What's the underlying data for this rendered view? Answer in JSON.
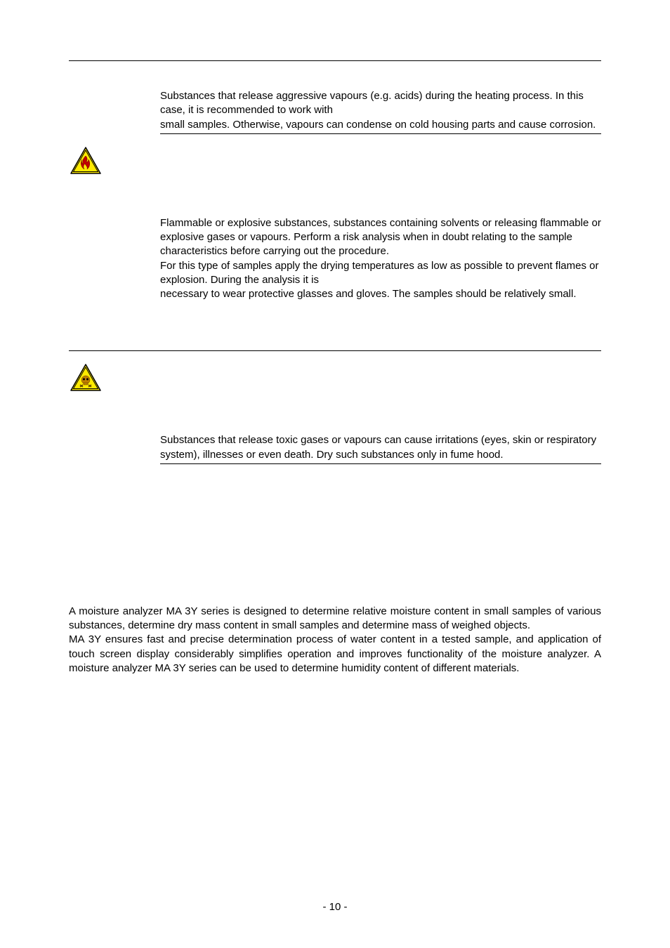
{
  "sections": [
    {
      "text": "Substances that release aggressive vapours (e.g. acids) during the heating process. In this case, it is recommended to work with\nsmall samples. Otherwise, vapours can condense on cold housing parts and cause corrosion."
    },
    {
      "text": "Flammable or explosive substances, substances containing solvents or releasing flammable or explosive gases or vapours. Perform a risk analysis when in doubt relating to the sample characteristics before carrying out the procedure.\nFor this type of samples apply the drying temperatures as low as possible to prevent flames or explosion. During the analysis it is\nnecessary to wear protective glasses and gloves. The samples should be relatively small."
    },
    {
      "text": "Substances that release toxic gases or vapours can cause irritations (eyes, skin or respiratory system), illnesses or even death. Dry such substances only in fume hood."
    }
  ],
  "body": "A moisture analyzer MA 3Y series is designed to determine relative moisture content in small samples of various substances, determine dry mass content in small samples and determine mass of weighed objects.\nMA 3Y ensures fast and precise determination process of water content in a tested sample, and application of touch screen display considerably simplifies operation and improves functionality of the moisture analyzer. A moisture analyzer MA 3Y series can be used to determine humidity content of different materials.",
  "page_number": "- 10 -",
  "colors": {
    "triangle_fill": "#ffea00",
    "triangle_stroke": "#000000",
    "flame": "#c00000",
    "skull": "#c08000"
  }
}
